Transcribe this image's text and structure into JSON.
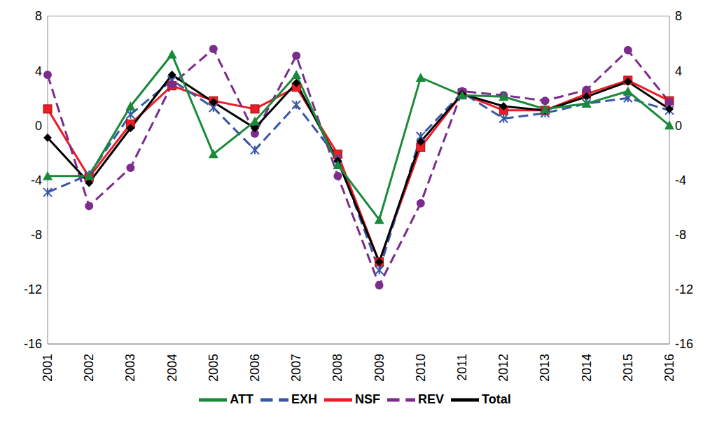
{
  "chart_data": {
    "type": "line",
    "categories": [
      "2001",
      "2002",
      "2003",
      "2004",
      "2005",
      "2006",
      "2007",
      "2008",
      "2009",
      "2010",
      "2011",
      "2012",
      "2013",
      "2014",
      "2015",
      "2016"
    ],
    "series": [
      {
        "name": "NSF",
        "color": "#ee1c25",
        "marker": "square",
        "line_style": "solid",
        "values": [
          1.2,
          -3.8,
          0.1,
          2.9,
          1.8,
          1.2,
          2.8,
          -2.1,
          -10.0,
          -1.6,
          2.3,
          1.1,
          1.1,
          2.3,
          3.3,
          1.8
        ]
      },
      {
        "name": "EXH",
        "color": "#3a56a6",
        "marker": "x",
        "line_style": "dashed",
        "values": [
          -4.9,
          -3.6,
          0.8,
          3.3,
          1.3,
          -1.8,
          1.5,
          -2.4,
          -10.6,
          -0.8,
          2.4,
          0.5,
          0.9,
          1.6,
          2.0,
          1.1
        ]
      },
      {
        "name": "REV",
        "color": "#7b2c8c",
        "marker": "circle",
        "line_style": "dashed",
        "values": [
          3.7,
          -5.9,
          -3.1,
          3.0,
          5.6,
          -0.6,
          5.1,
          -3.7,
          -11.7,
          -5.7,
          2.5,
          2.2,
          1.8,
          2.6,
          5.5,
          1.7
        ]
      },
      {
        "name": "Total",
        "color": "#000000",
        "marker": "diamond",
        "line_style": "solid",
        "values": [
          -0.9,
          -4.2,
          -0.2,
          3.7,
          1.7,
          -0.2,
          3.1,
          -2.6,
          -10.0,
          -1.2,
          2.3,
          1.4,
          1.1,
          2.1,
          3.2,
          1.2
        ]
      },
      {
        "name": "ATT",
        "color": "#1a8a3a",
        "marker": "triangle",
        "line_style": "solid",
        "values": [
          -3.7,
          -3.7,
          1.4,
          5.2,
          -2.1,
          0.3,
          3.7,
          -2.9,
          -6.9,
          3.5,
          2.2,
          2.1,
          1.2,
          1.6,
          2.5,
          0.0
        ]
      }
    ],
    "ylim": [
      -16,
      8
    ],
    "yticks": [
      -16,
      -12,
      -8,
      -4,
      0,
      4,
      8
    ],
    "y2lim": [
      -16,
      8
    ],
    "y2ticks": [
      -16,
      -12,
      -8,
      -4,
      0,
      4,
      8
    ],
    "grid": true,
    "legend": "bottom"
  }
}
